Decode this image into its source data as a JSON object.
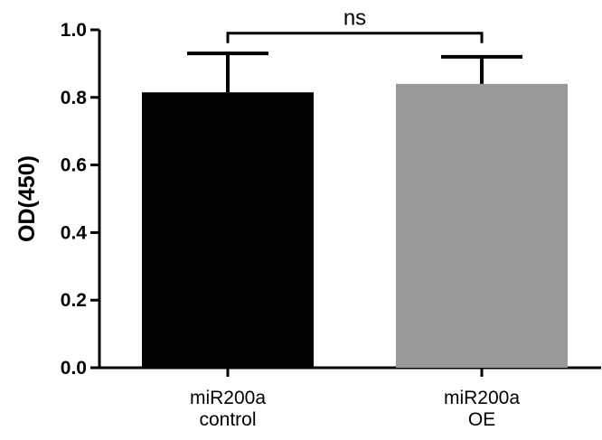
{
  "chart_data": {
    "type": "bar",
    "ylabel": "OD(450)",
    "ylim": [
      0,
      1.0
    ],
    "yticks": [
      "0.0",
      "0.2",
      "0.4",
      "0.6",
      "0.8",
      "1.0"
    ],
    "categories": [
      {
        "lines": [
          "miR200a",
          "control"
        ]
      },
      {
        "lines": [
          "miR200a",
          "OE"
        ]
      }
    ],
    "values": [
      0.815,
      0.84
    ],
    "errors": [
      0.115,
      0.08
    ],
    "colors": [
      "#000000",
      "#999999"
    ],
    "significance": {
      "label": "ns",
      "between": [
        0,
        1
      ],
      "y": 0.99
    },
    "grid": false,
    "legend": "none"
  }
}
